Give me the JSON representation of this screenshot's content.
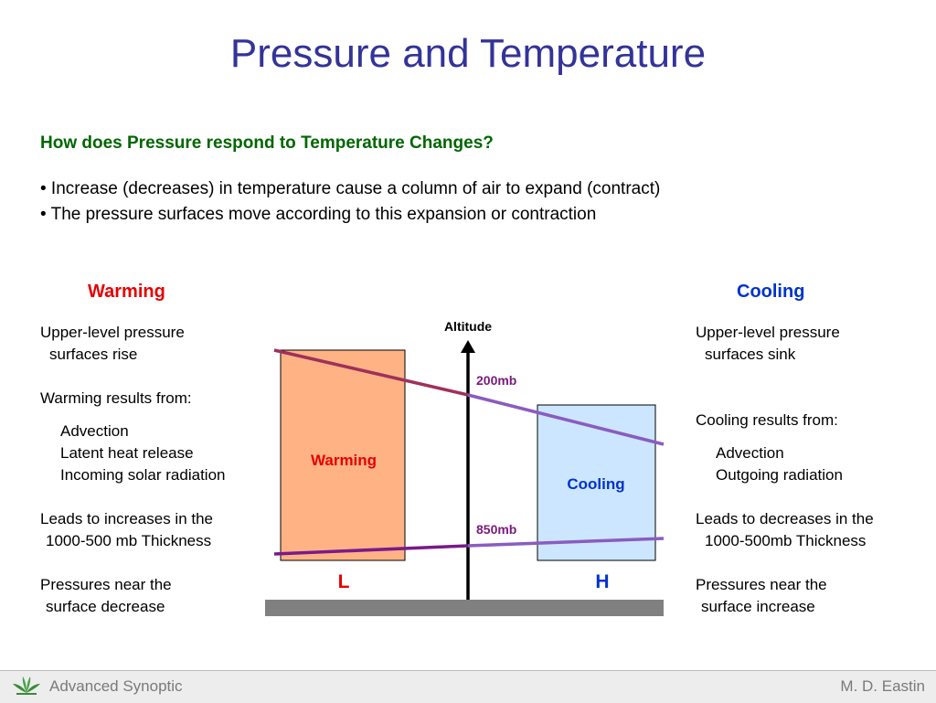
{
  "slide": {
    "title": "Pressure and Temperature",
    "question": "How does Pressure respond to Temperature Changes?",
    "bullets": [
      "• Increase (decreases) in temperature cause a column of air to expand (contract)",
      "• The pressure surfaces move according to this expansion or contraction"
    ]
  },
  "warming": {
    "heading": "Warming",
    "lines": [
      "Upper-level pressure",
      "surfaces rise",
      "",
      "Warming results from:",
      "",
      "Advection",
      "Latent heat release",
      "Incoming solar radiation",
      "",
      "Leads to increases in the",
      "1000-500 mb Thickness",
      "",
      "Pressures near the",
      "surface decrease"
    ]
  },
  "cooling": {
    "heading": "Cooling",
    "lines": [
      "Upper-level pressure",
      "surfaces sink",
      "",
      "",
      "Cooling results from:",
      "",
      "Advection",
      "Outgoing radiation",
      "",
      "Leads to decreases in the",
      "1000-500mb Thickness",
      "",
      "Pressures near the",
      "surface increase"
    ]
  },
  "diagram": {
    "axis_label": "Altitude",
    "upper_level": "200mb",
    "lower_level": "850mb",
    "warm_column_label": "Warming",
    "cool_column_label": "Cooling",
    "low_label": "L",
    "high_label": "H",
    "colors": {
      "warm_fill": "#ffb385",
      "cool_fill": "#cce6ff",
      "pressure_line_left": "#a0305a",
      "pressure_line_right": "#8a5cc0",
      "lower_line": "#7a1a8a",
      "level_label": "#7a1a7a",
      "ground": "#808080",
      "low": "#e60000",
      "high": "#0033cc"
    }
  },
  "footer": {
    "course": "Advanced Synoptic",
    "author": "M. D. Eastin"
  }
}
